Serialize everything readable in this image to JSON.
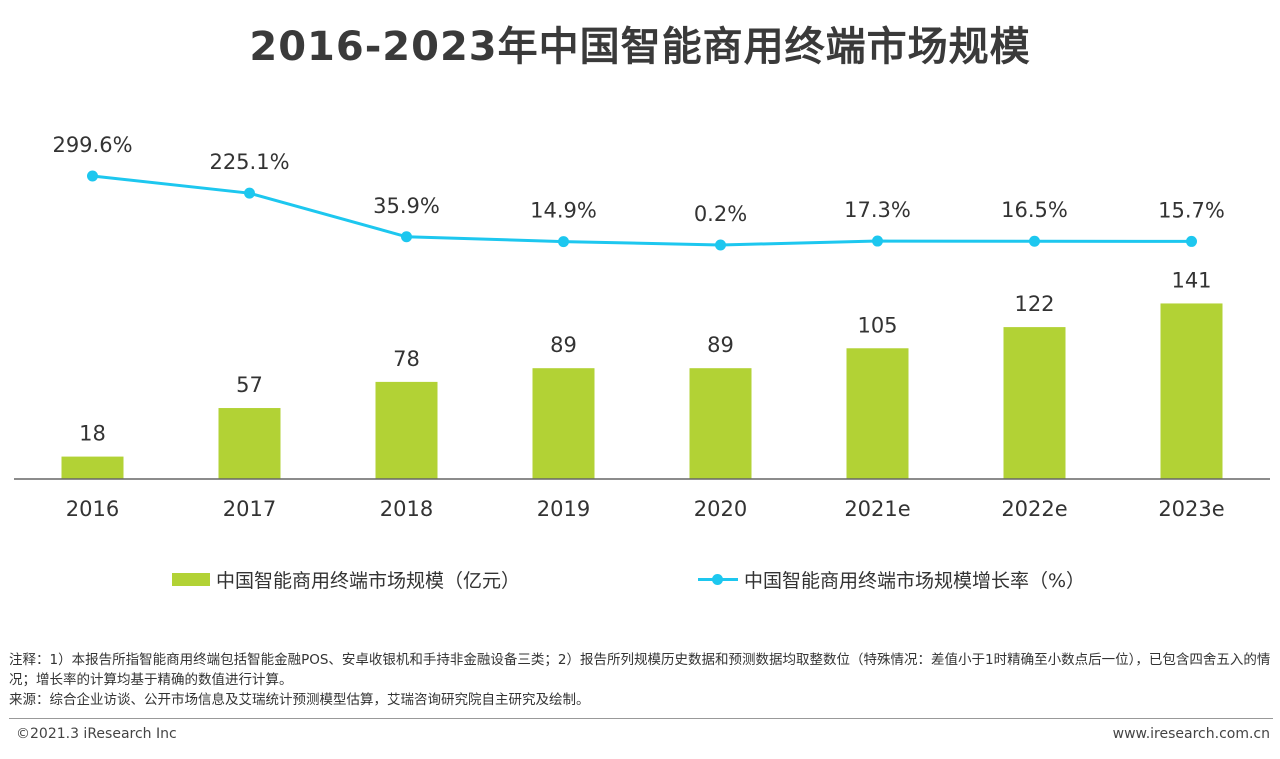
{
  "title": "2016-2023年中国智能商用终端市场规模",
  "colors": {
    "bar": "#b2d235",
    "line": "#1dc7ef",
    "axis": "#666666"
  },
  "chart_data": {
    "type": "bar+line",
    "categories": [
      "2016",
      "2017",
      "2018",
      "2019",
      "2020",
      "2021e",
      "2022e",
      "2023e"
    ],
    "series": [
      {
        "name": "中国智能商用终端市场规模（亿元）",
        "type": "bar",
        "values": [
          18,
          57,
          78,
          89,
          89,
          105,
          122,
          141
        ],
        "labels": [
          "18",
          "57",
          "78",
          "89",
          "89",
          "105",
          "122",
          "141"
        ]
      },
      {
        "name": "中国智能商用终端市场规模增长率（%）",
        "type": "line",
        "values": [
          299.6,
          225.1,
          35.9,
          14.9,
          0.2,
          17.3,
          16.5,
          15.7
        ],
        "labels": [
          "299.6%",
          "225.1%",
          "35.9%",
          "14.9%",
          "0.2%",
          "17.3%",
          "16.5%",
          "15.7%"
        ]
      }
    ],
    "legend": "bottom"
  },
  "legend": {
    "bar_label": "中国智能商用终端市场规模（亿元）",
    "line_label": "中国智能商用终端市场规模增长率（%）"
  },
  "notes": {
    "line1": "注释：1）本报告所指智能商用终端包括智能金融POS、安卓收银机和手持非金融设备三类；2）报告所列规模历史数据和预测数据均取整数位（特殊情况：差值小于1时精确至小数点后一位），已包含四舍五入的情况；增长率的计算均基于精确的数值进行计算。",
    "line2": "来源：综合企业访谈、公开市场信息及艾瑞统计预测模型估算，艾瑞咨询研究院自主研究及绘制。"
  },
  "footer": {
    "copyright": "©2021.3 iResearch Inc",
    "website": "www.iresearch.com.cn"
  }
}
